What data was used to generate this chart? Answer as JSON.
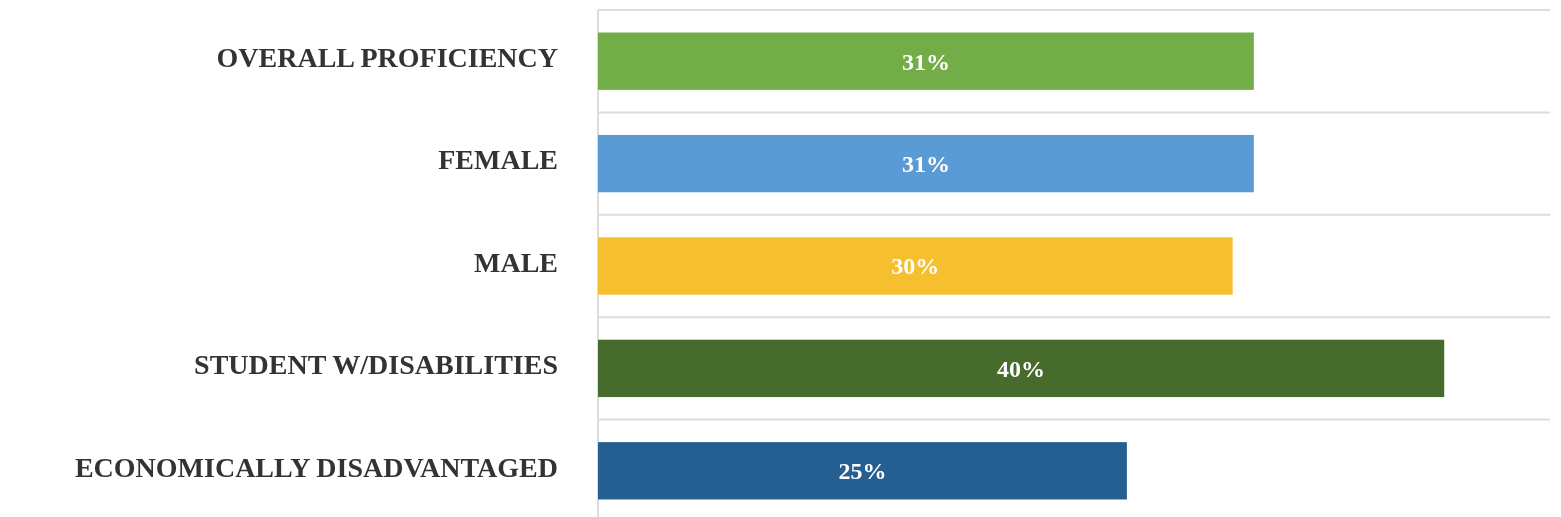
{
  "chart_data": {
    "type": "bar",
    "orientation": "horizontal",
    "categories": [
      "OVERALL PROFICIENCY",
      "FEMALE",
      "MALE",
      "STUDENT W/DISABILITIES",
      "ECONOMICALLY DISADVANTAGED"
    ],
    "values": [
      31,
      31,
      30,
      40,
      25
    ],
    "value_labels": [
      "31%",
      "31%",
      "30%",
      "40%",
      "25%"
    ],
    "colors": [
      "#72ad47",
      "#5b9bd5",
      "#f5bf30",
      "#476b2d",
      "#255e91"
    ],
    "xlim": [
      0,
      45
    ],
    "grid": "y",
    "tick_labels": "y"
  }
}
